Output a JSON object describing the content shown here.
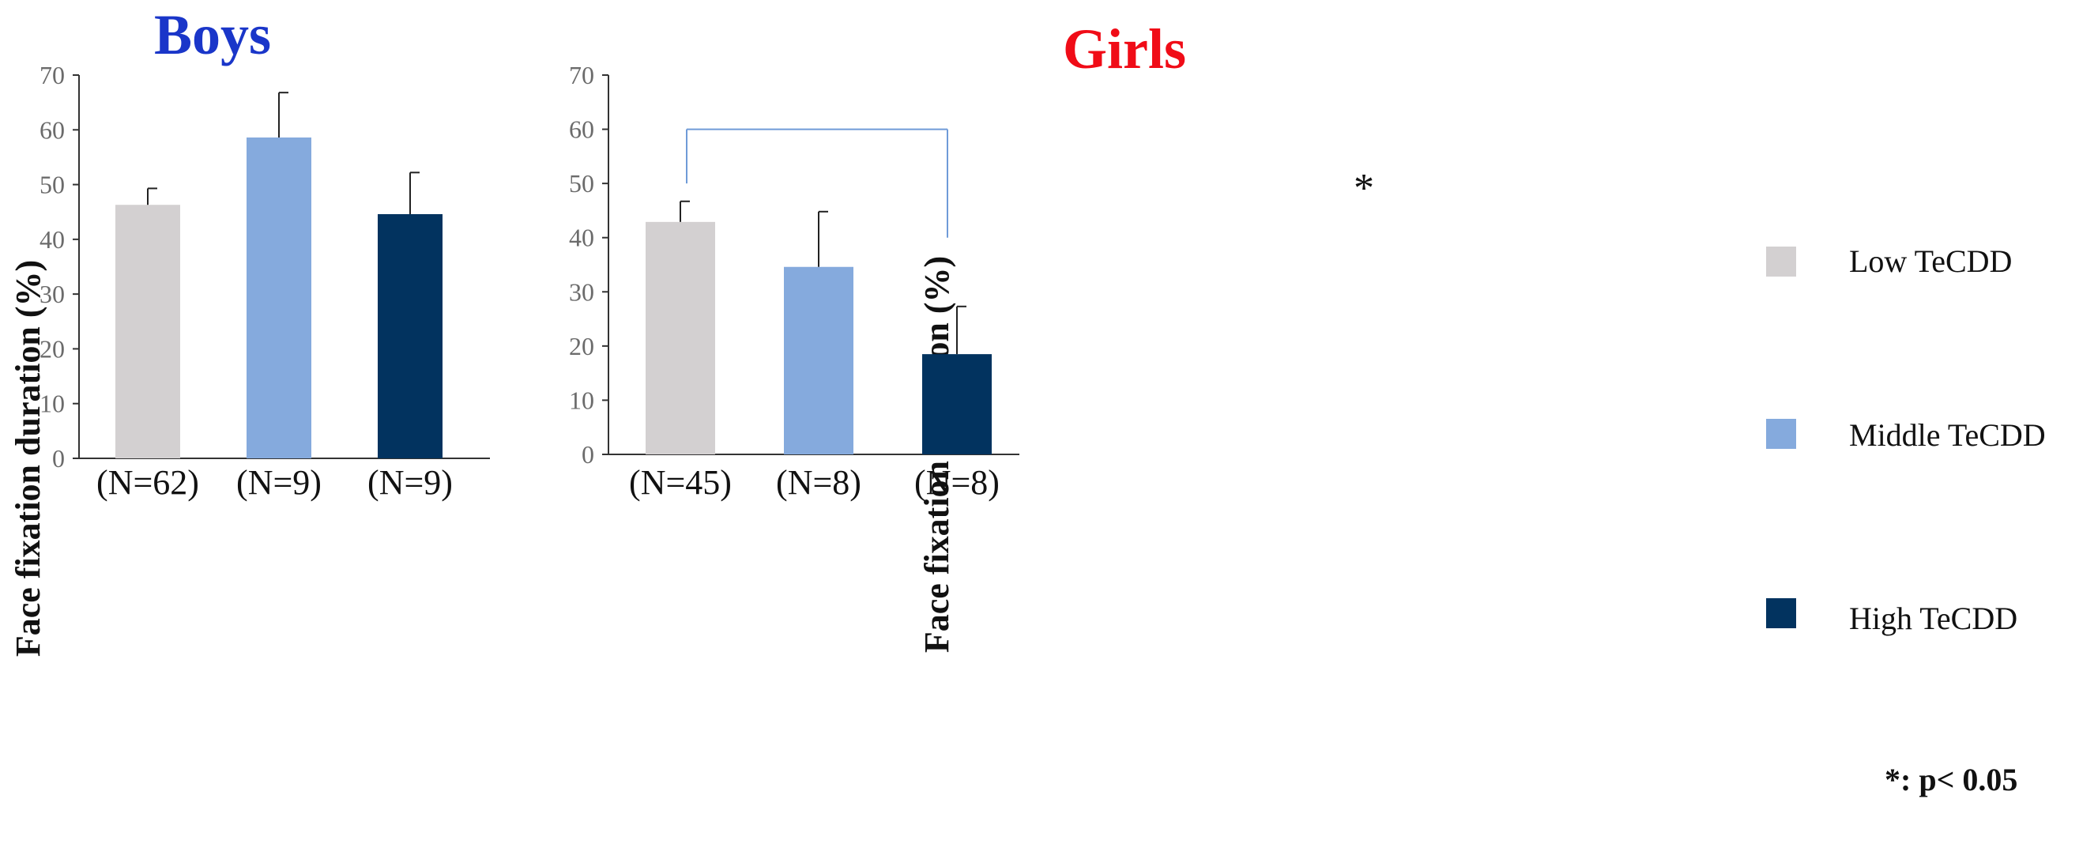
{
  "colors": {
    "boys_title": "#1a36c9",
    "girls_title": "#f00c17",
    "low": "#d3d0d1",
    "middle": "#85aadd",
    "high": "#02335f",
    "bracket": "#6f9bd8"
  },
  "legend": {
    "items": [
      {
        "label": "Low TeCDD",
        "color": "#d3d0d1"
      },
      {
        "label": "Middle TeCDD",
        "color": "#85aadd"
      },
      {
        "label": "High TeCDD",
        "color": "#02335f"
      }
    ]
  },
  "significance": {
    "star": "*",
    "note": "*: p< 0.05"
  },
  "chart_data": [
    {
      "type": "bar",
      "title": "Boys",
      "ylabel": "Face fixation duration (%)",
      "xlabel": "",
      "ylim": [
        0,
        70
      ],
      "yticks": [
        0,
        10,
        20,
        30,
        40,
        50,
        60,
        70
      ],
      "categories": [
        "(N=62)",
        "(N=9)",
        "(N=9)"
      ],
      "series_names": [
        "Low TeCDD",
        "Middle TeCDD",
        "High TeCDD"
      ],
      "values": [
        46.3,
        58.6,
        44.6
      ],
      "errors": [
        3.0,
        8.2,
        7.6
      ]
    },
    {
      "type": "bar",
      "title": "Girls",
      "ylabel": "Face fixation duration (%)",
      "xlabel": "",
      "ylim": [
        0,
        70
      ],
      "yticks": [
        0,
        10,
        20,
        30,
        40,
        50,
        60,
        70
      ],
      "categories": [
        "(N=45)",
        "(N=8)",
        "(N=8)"
      ],
      "series_names": [
        "Low TeCDD",
        "Middle TeCDD",
        "High TeCDD"
      ],
      "values": [
        42.9,
        34.6,
        18.5
      ],
      "errors": [
        3.8,
        10.2,
        8.8
      ],
      "comparison": {
        "from": 0,
        "to": 2,
        "label": "*"
      }
    }
  ]
}
